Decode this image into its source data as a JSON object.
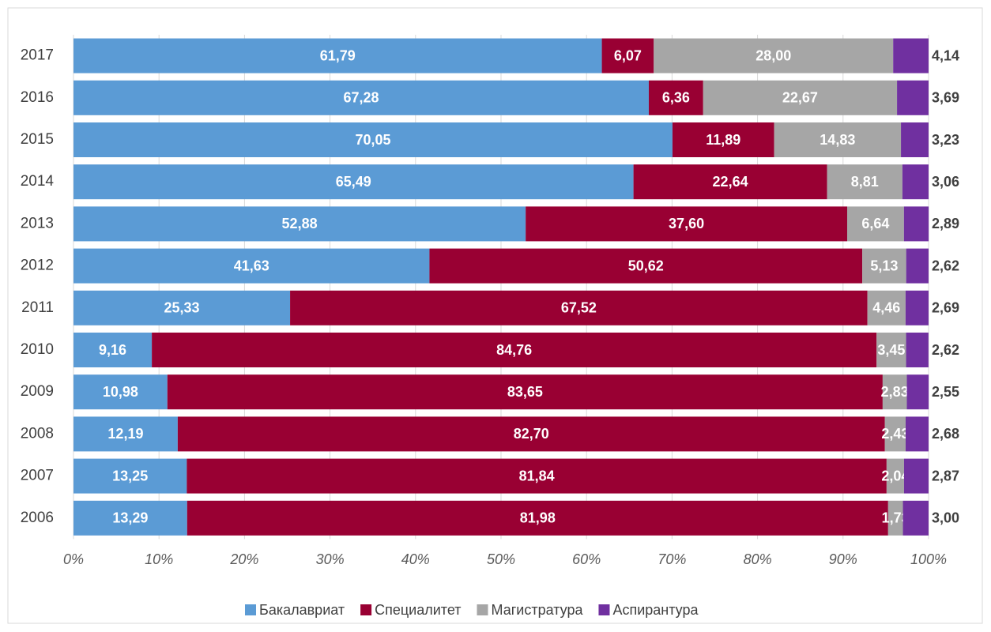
{
  "chart_data": {
    "type": "stacked_bar_horizontal",
    "categories": [
      "2017",
      "2016",
      "2015",
      "2014",
      "2013",
      "2012",
      "2011",
      "2010",
      "2009",
      "2008",
      "2007",
      "2006"
    ],
    "series": [
      {
        "name": "Бакалавриат",
        "color": "#5b9bd5",
        "values": [
          61.79,
          67.28,
          70.05,
          65.49,
          52.88,
          41.63,
          25.33,
          9.16,
          10.98,
          12.19,
          13.25,
          13.29
        ],
        "value_labels": [
          "61,79",
          "67,28",
          "70,05",
          "65,49",
          "52,88",
          "41,63",
          "25,33",
          "9,16",
          "10,98",
          "12,19",
          "13,25",
          "13,29"
        ]
      },
      {
        "name": "Специалитет",
        "color": "#990033",
        "values": [
          6.07,
          6.36,
          11.89,
          22.64,
          37.6,
          50.62,
          67.52,
          84.76,
          83.65,
          82.7,
          81.84,
          81.98
        ],
        "value_labels": [
          "6,07",
          "6,36",
          "11,89",
          "22,64",
          "37,60",
          "50,62",
          "67,52",
          "84,76",
          "83,65",
          "82,70",
          "81,84",
          "81,98"
        ]
      },
      {
        "name": "Магистратура",
        "color": "#a6a6a6",
        "values": [
          28.0,
          22.67,
          14.83,
          8.81,
          6.64,
          5.13,
          4.46,
          3.45,
          2.83,
          2.43,
          2.04,
          1.73
        ],
        "value_labels": [
          "28,00",
          "22,67",
          "14,83",
          "8,81",
          "6,64",
          "5,13",
          "4,46",
          "3,45",
          "2,83",
          "2,43",
          "2,04",
          "1,73"
        ]
      },
      {
        "name": "Аспирантура",
        "color": "#7030a0",
        "values": [
          4.14,
          3.69,
          3.23,
          3.06,
          2.89,
          2.62,
          2.69,
          2.62,
          2.55,
          2.68,
          2.87,
          3.0
        ],
        "value_labels": [
          "4,14",
          "3,69",
          "3,23",
          "3,06",
          "2,89",
          "2,62",
          "2,69",
          "2,62",
          "2,55",
          "2,68",
          "2,87",
          "3,00"
        ]
      }
    ],
    "xlim": [
      0,
      100
    ],
    "xticks": [
      {
        "value": 0,
        "label": "0%"
      },
      {
        "value": 10,
        "label": "10%"
      },
      {
        "value": 20,
        "label": "20%"
      },
      {
        "value": 30,
        "label": "30%"
      },
      {
        "value": 40,
        "label": "40%"
      },
      {
        "value": 50,
        "label": "50%"
      },
      {
        "value": 60,
        "label": "60%"
      },
      {
        "value": 70,
        "label": "70%"
      },
      {
        "value": 80,
        "label": "80%"
      },
      {
        "value": 90,
        "label": "90%"
      },
      {
        "value": 100,
        "label": "100%"
      }
    ],
    "grid": true,
    "legend": "bottom"
  }
}
